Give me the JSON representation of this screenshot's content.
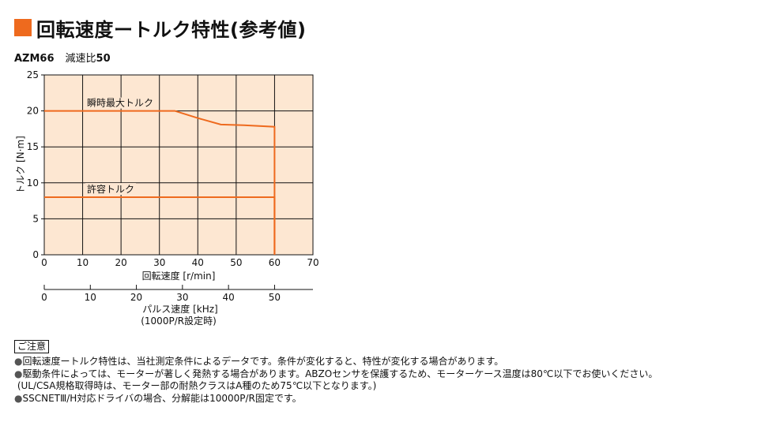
{
  "title": "回転速度ートルク特性(参考値)",
  "accent_color": "#ee6a1e",
  "model": {
    "code": "AZM66",
    "ratio_label": "減速比",
    "ratio_value": "50"
  },
  "chart_data": {
    "type": "line",
    "xlabel": "回転速度 [r/min]",
    "ylabel": "トルク [N·m]",
    "xlim": [
      0,
      70
    ],
    "ylim": [
      0,
      25
    ],
    "x_ticks": [
      0,
      10,
      20,
      30,
      40,
      50,
      60,
      70
    ],
    "y_ticks": [
      0,
      5,
      10,
      15,
      20,
      25
    ],
    "grid": true,
    "series": [
      {
        "name": "瞬時最大トルク",
        "color": "#ee6a1e",
        "points": [
          [
            0,
            20
          ],
          [
            34,
            20
          ],
          [
            40,
            19
          ],
          [
            46,
            18.1
          ],
          [
            52,
            18
          ],
          [
            60,
            17.8
          ],
          [
            60,
            0
          ]
        ]
      },
      {
        "name": "許容トルク",
        "color": "#ee6a1e",
        "points": [
          [
            0,
            8
          ],
          [
            60,
            8
          ],
          [
            60,
            0
          ]
        ]
      }
    ],
    "secondary_axis": {
      "label": "パルス速度 [kHz]",
      "sublabel": "(1000P/R設定時)",
      "ticks": [
        0,
        10,
        20,
        30,
        40,
        50
      ],
      "scale_per_rpm": 0.8333
    }
  },
  "notes_header": "ご注意",
  "notes": [
    "回転速度ートルク特性は、当社測定条件によるデータです。条件が変化すると、特性が変化する場合があります。",
    "駆動条件によっては、モーターが著しく発熱する場合があります。ABZOセンサを保護するため、モーターケース温度は80℃以下でお使いください。",
    "(UL/CSA規格取得時は、モーター部の耐熱クラスはA種のため75℃以下となります。)",
    "SSCNETⅢ/H対応ドライバの場合、分解能は10000P/R固定です。"
  ]
}
